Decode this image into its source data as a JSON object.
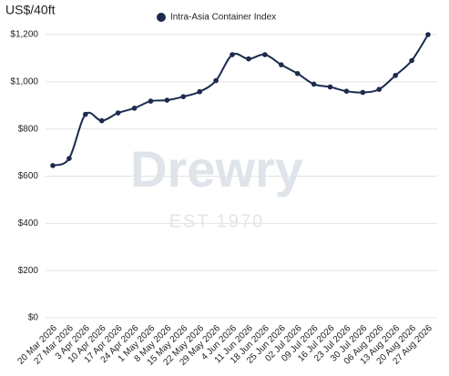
{
  "chart_data": {
    "type": "line",
    "ylabel": "US$/40ft",
    "watermark": "Drewry",
    "watermark_subtitle": "EST 1970",
    "categories": [
      "20 Mar 2026",
      "27 Mar 2026",
      "3 Apr 2026",
      "10 Apr 2026",
      "17 Apr 2026",
      "24 Apr 2026",
      "1 May 2026",
      "8 May 2026",
      "15 May 2026",
      "22 May 2026",
      "29 May 2026",
      "4 Jun 2026",
      "11 Jun 2026",
      "18 Jun 2026",
      "25 Jun 2026",
      "02 Jul 2026",
      "09 Jul 2026",
      "16 Jul 2026",
      "23 Jul 2026",
      "30 Jul 2026",
      "06 Aug 2026",
      "13 Aug 2026",
      "20 Aug 2026",
      "27 Aug 2026"
    ],
    "series": [
      {
        "name": "Intra-Asia Container Index",
        "color": "#1b2a4e",
        "values": [
          645,
          675,
          862,
          835,
          868,
          888,
          918,
          922,
          937,
          958,
          1005,
          1115,
          1097,
          1115,
          1072,
          1035,
          990,
          978,
          960,
          955,
          968,
          1027,
          1090,
          1200
        ]
      }
    ],
    "ylim": [
      0,
      1200
    ],
    "yticks": [
      {
        "value": 0,
        "label": "$0"
      },
      {
        "value": 200,
        "label": "$200"
      },
      {
        "value": 400,
        "label": "$400"
      },
      {
        "value": 600,
        "label": "$600"
      },
      {
        "value": 800,
        "label": "$800"
      },
      {
        "value": 1000,
        "label": "$1,000"
      },
      {
        "value": 1200,
        "label": "$1,200"
      }
    ],
    "grid": true
  }
}
